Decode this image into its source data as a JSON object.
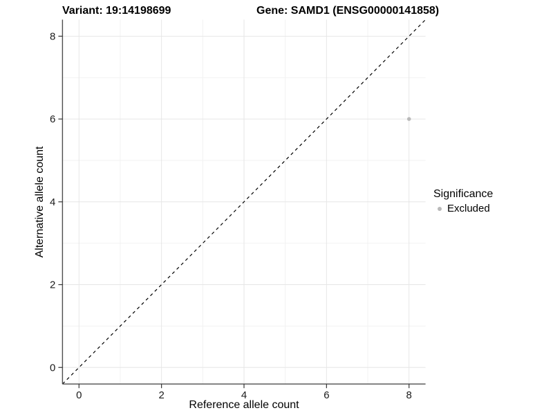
{
  "header": {
    "left_title": "Variant: 19:14198699",
    "right_title": "Gene: SAMD1 (ENSG00000141858)"
  },
  "chart_data": {
    "type": "scatter",
    "xlabel": "Reference allele count",
    "ylabel": "Alternative allele count",
    "xlim": [
      -0.4,
      8.4
    ],
    "ylim": [
      -0.4,
      8.4
    ],
    "xticks": [
      0,
      2,
      4,
      6,
      8
    ],
    "yticks": [
      0,
      2,
      4,
      6,
      8
    ],
    "x_minor": [
      1,
      3,
      5,
      7
    ],
    "y_minor": [
      1,
      3,
      5,
      7
    ],
    "grid": "major+minor",
    "series": [
      {
        "name": "Excluded",
        "color": "#b9b9b9",
        "marker": "circle",
        "points": [
          {
            "x": 8,
            "y": 6
          }
        ]
      }
    ],
    "reference_line": {
      "kind": "identity y=x",
      "style": "dashed",
      "color": "#000000",
      "from": [
        -0.4,
        -0.4
      ],
      "to": [
        8.4,
        8.4
      ]
    },
    "legend": {
      "title": "Significance",
      "position": "right",
      "entries": [
        {
          "label": "Excluded",
          "color": "#b9b9b9",
          "marker": "circle"
        }
      ]
    }
  },
  "style_colors": {
    "background": "#ffffff",
    "grid_major": "#e6e6e6",
    "grid_minor": "#f2f2f2",
    "axis_line": "#4d4d4d",
    "tick_mark": "#333333",
    "tick_label": "#1a1a1a",
    "point": "#b9b9b9",
    "text": "#000000"
  }
}
